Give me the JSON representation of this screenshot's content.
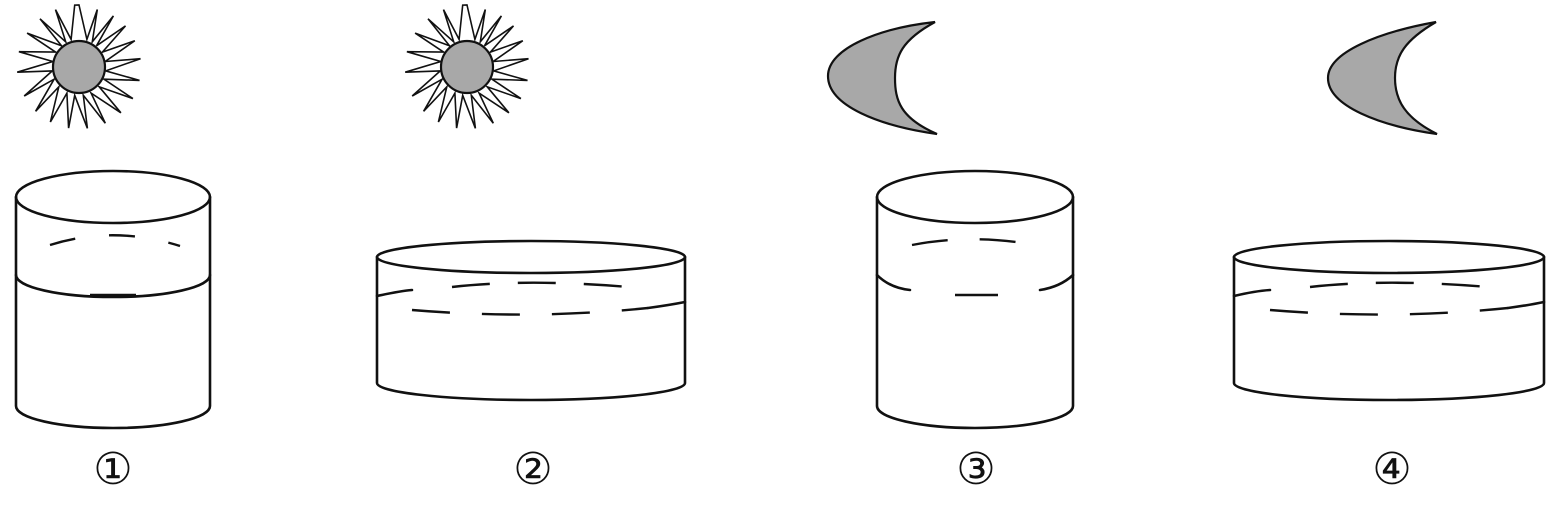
{
  "figure": {
    "panels": [
      {
        "label": "①",
        "sky_icon": "sun-icon",
        "container": "tall-narrow-beaker"
      },
      {
        "label": "②",
        "sky_icon": "sun-icon",
        "container": "wide-shallow-dish"
      },
      {
        "label": "③",
        "sky_icon": "moon-icon",
        "container": "tall-narrow-beaker"
      },
      {
        "label": "④",
        "sky_icon": "moon-icon",
        "container": "wide-shallow-dish"
      }
    ],
    "colors": {
      "line": "#111111",
      "icon_fill": "#a8a8a8",
      "background": "#ffffff"
    }
  }
}
